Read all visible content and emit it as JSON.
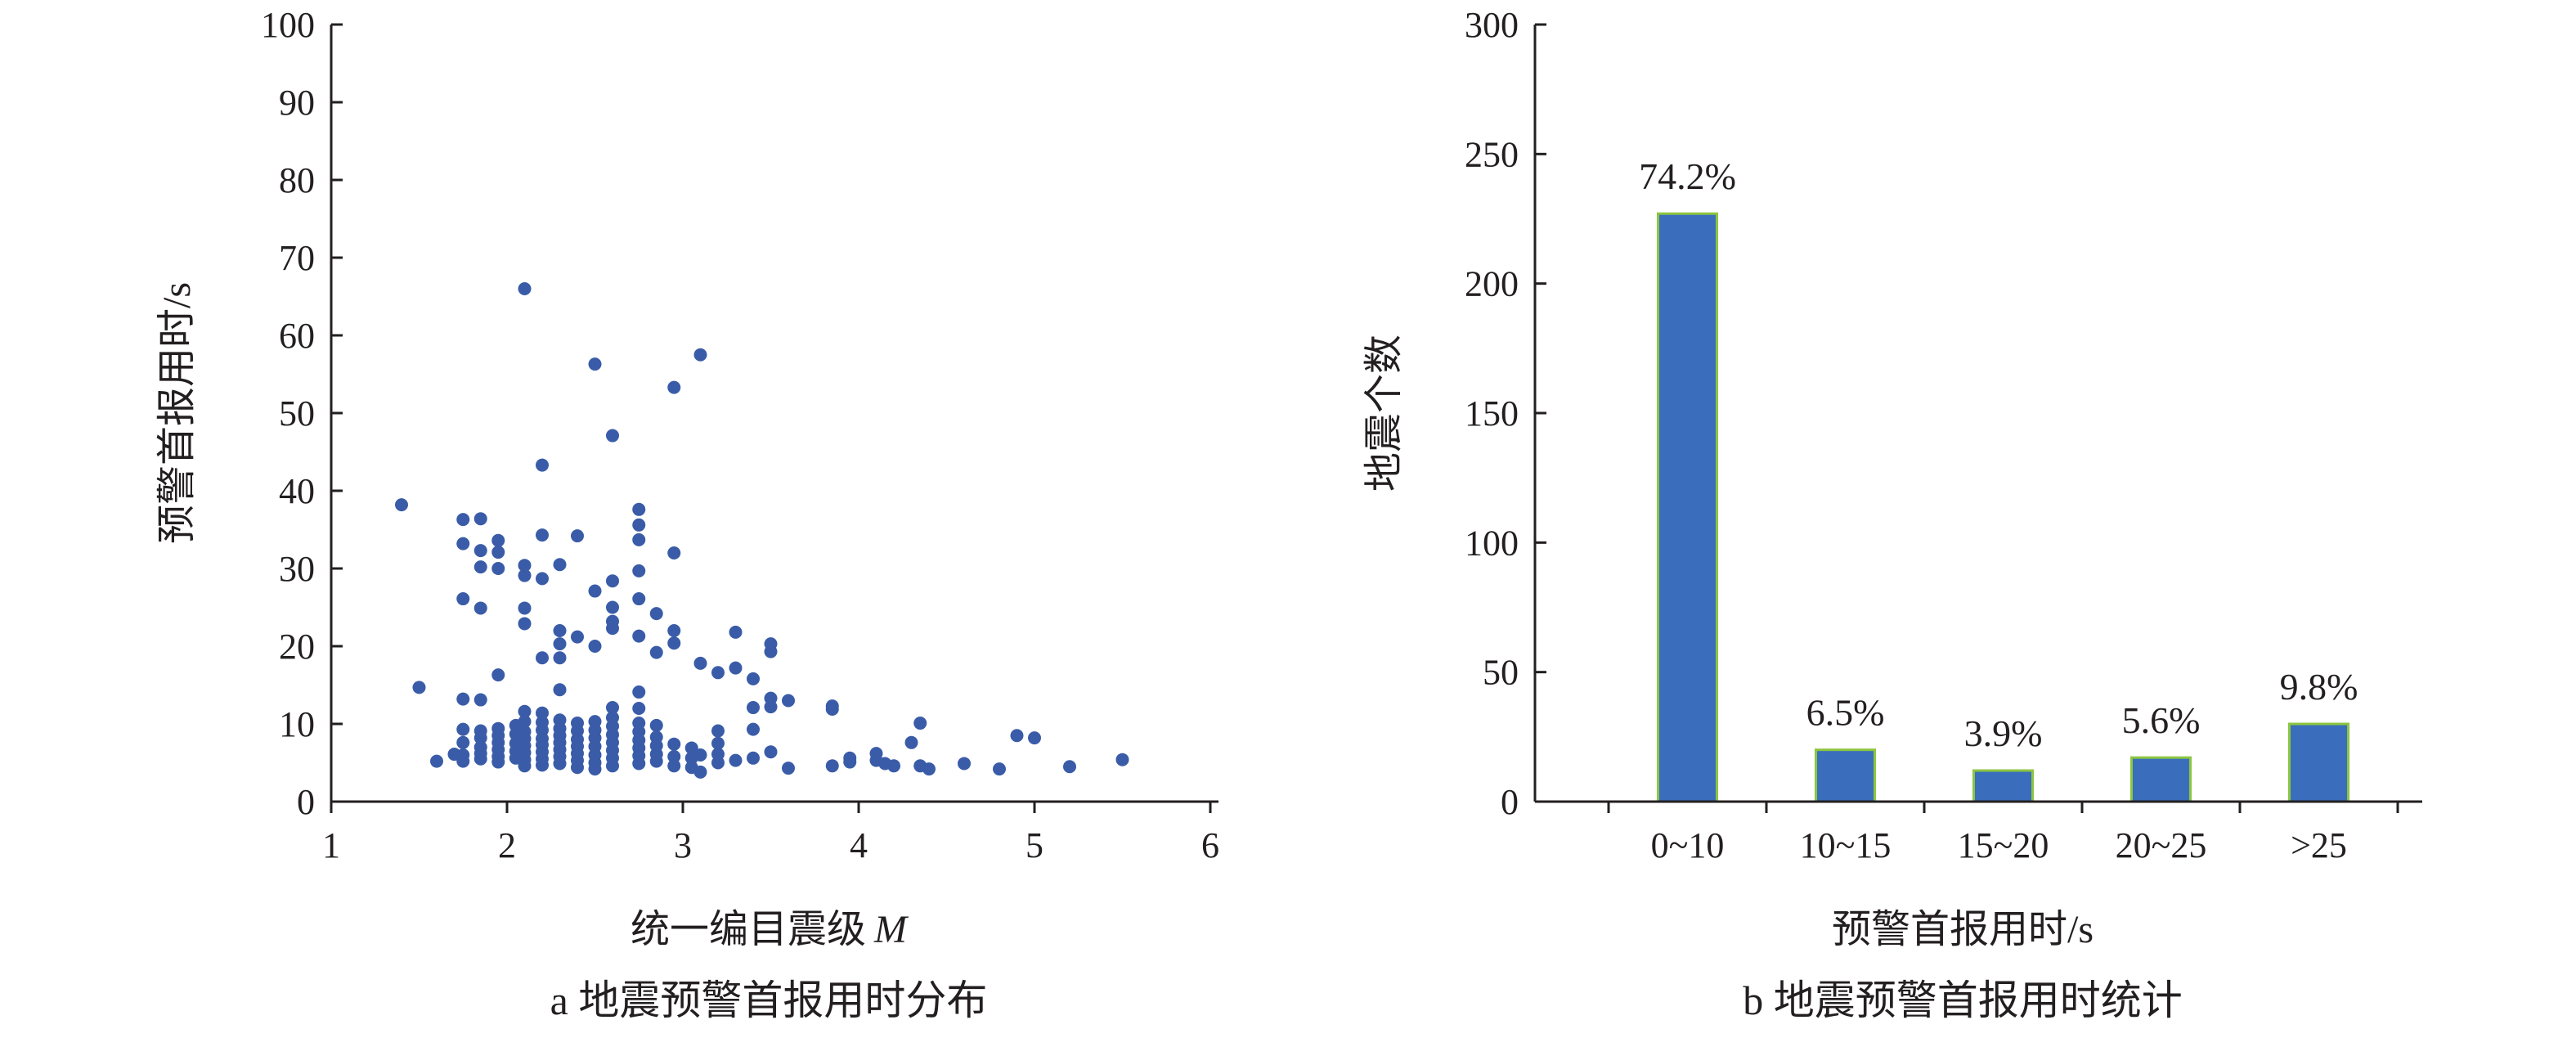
{
  "chart_data": [
    {
      "type": "scatter",
      "caption": "a 地震预警首报用时分布",
      "xlabel": "统一编目震级",
      "xlabel_var": "M",
      "ylabel": "预警首报用时/s",
      "xlim": [
        1,
        6
      ],
      "ylim": [
        0,
        100
      ],
      "xticks": [
        "1",
        "2",
        "3",
        "4",
        "5",
        "6"
      ],
      "yticks": [
        "0",
        "10",
        "20",
        "30",
        "40",
        "50",
        "60",
        "70",
        "80",
        "90",
        "100"
      ],
      "marker_color": "#3a5ca8",
      "points": [
        [
          1.4,
          38.2
        ],
        [
          1.5,
          14.7
        ],
        [
          1.6,
          5.2
        ],
        [
          1.7,
          6.1
        ],
        [
          1.75,
          36.3
        ],
        [
          1.75,
          33.2
        ],
        [
          1.75,
          26.1
        ],
        [
          1.75,
          13.2
        ],
        [
          1.75,
          9.3
        ],
        [
          1.75,
          7.6
        ],
        [
          1.75,
          6.0
        ],
        [
          1.75,
          5.2
        ],
        [
          1.85,
          36.4
        ],
        [
          1.85,
          32.3
        ],
        [
          1.85,
          30.2
        ],
        [
          1.85,
          24.9
        ],
        [
          1.85,
          13.1
        ],
        [
          1.85,
          9.1
        ],
        [
          1.85,
          8.2
        ],
        [
          1.85,
          7.0
        ],
        [
          1.85,
          6.2
        ],
        [
          1.85,
          5.5
        ],
        [
          1.95,
          33.6
        ],
        [
          1.95,
          32.1
        ],
        [
          1.95,
          30.0
        ],
        [
          1.95,
          16.3
        ],
        [
          1.95,
          9.4
        ],
        [
          1.95,
          8.5
        ],
        [
          1.95,
          7.6
        ],
        [
          1.95,
          6.7
        ],
        [
          1.95,
          5.8
        ],
        [
          1.95,
          5.1
        ],
        [
          2.05,
          9.8
        ],
        [
          2.05,
          8.7
        ],
        [
          2.05,
          7.5
        ],
        [
          2.05,
          6.5
        ],
        [
          2.05,
          5.6
        ],
        [
          2.1,
          66.0
        ],
        [
          2.1,
          30.4
        ],
        [
          2.1,
          29.1
        ],
        [
          2.1,
          24.9
        ],
        [
          2.1,
          22.9
        ],
        [
          2.1,
          11.6
        ],
        [
          2.1,
          10.3
        ],
        [
          2.1,
          9.0
        ],
        [
          2.1,
          8.1
        ],
        [
          2.1,
          7.2
        ],
        [
          2.1,
          6.3
        ],
        [
          2.1,
          5.4
        ],
        [
          2.1,
          4.6
        ],
        [
          2.2,
          43.3
        ],
        [
          2.2,
          34.3
        ],
        [
          2.2,
          28.7
        ],
        [
          2.2,
          18.5
        ],
        [
          2.2,
          11.4
        ],
        [
          2.2,
          10.2
        ],
        [
          2.2,
          9.2
        ],
        [
          2.2,
          8.1
        ],
        [
          2.2,
          7.3
        ],
        [
          2.2,
          6.4
        ],
        [
          2.2,
          5.5
        ],
        [
          2.2,
          4.7
        ],
        [
          2.3,
          30.5
        ],
        [
          2.3,
          22.0
        ],
        [
          2.3,
          20.3
        ],
        [
          2.3,
          18.5
        ],
        [
          2.3,
          14.4
        ],
        [
          2.3,
          10.5
        ],
        [
          2.3,
          9.4
        ],
        [
          2.3,
          8.5
        ],
        [
          2.3,
          7.6
        ],
        [
          2.3,
          6.7
        ],
        [
          2.3,
          5.8
        ],
        [
          2.3,
          4.9
        ],
        [
          2.4,
          34.2
        ],
        [
          2.4,
          21.2
        ],
        [
          2.4,
          10.1
        ],
        [
          2.4,
          9.1
        ],
        [
          2.4,
          8.0
        ],
        [
          2.4,
          7.1
        ],
        [
          2.4,
          6.2
        ],
        [
          2.4,
          5.3
        ],
        [
          2.4,
          4.4
        ],
        [
          2.5,
          56.3
        ],
        [
          2.5,
          27.1
        ],
        [
          2.5,
          20.0
        ],
        [
          2.5,
          10.3
        ],
        [
          2.5,
          9.2
        ],
        [
          2.5,
          8.2
        ],
        [
          2.5,
          7.1
        ],
        [
          2.5,
          6.0
        ],
        [
          2.5,
          5.0
        ],
        [
          2.5,
          4.2
        ],
        [
          2.6,
          47.1
        ],
        [
          2.6,
          28.4
        ],
        [
          2.6,
          25.0
        ],
        [
          2.6,
          23.2
        ],
        [
          2.6,
          22.3
        ],
        [
          2.6,
          12.1
        ],
        [
          2.6,
          10.8
        ],
        [
          2.6,
          9.7
        ],
        [
          2.6,
          8.6
        ],
        [
          2.6,
          7.6
        ],
        [
          2.6,
          6.6
        ],
        [
          2.6,
          5.6
        ],
        [
          2.6,
          4.6
        ],
        [
          2.75,
          37.6
        ],
        [
          2.75,
          35.6
        ],
        [
          2.75,
          33.7
        ],
        [
          2.75,
          29.7
        ],
        [
          2.75,
          26.1
        ],
        [
          2.75,
          21.3
        ],
        [
          2.75,
          14.1
        ],
        [
          2.75,
          12.0
        ],
        [
          2.75,
          10.1
        ],
        [
          2.75,
          9.0
        ],
        [
          2.75,
          7.9
        ],
        [
          2.75,
          6.9
        ],
        [
          2.75,
          5.9
        ],
        [
          2.75,
          4.9
        ],
        [
          2.85,
          24.2
        ],
        [
          2.85,
          19.2
        ],
        [
          2.85,
          9.8
        ],
        [
          2.85,
          8.3
        ],
        [
          2.85,
          7.2
        ],
        [
          2.85,
          6.1
        ],
        [
          2.85,
          5.2
        ],
        [
          2.95,
          53.3
        ],
        [
          2.95,
          32.0
        ],
        [
          2.95,
          22.0
        ],
        [
          2.95,
          20.4
        ],
        [
          2.95,
          7.4
        ],
        [
          2.95,
          5.8
        ],
        [
          2.95,
          4.6
        ],
        [
          3.05,
          6.9
        ],
        [
          3.05,
          5.6
        ],
        [
          3.05,
          4.4
        ],
        [
          3.1,
          57.5
        ],
        [
          3.1,
          17.8
        ],
        [
          3.1,
          6.0
        ],
        [
          3.1,
          3.8
        ],
        [
          3.2,
          16.6
        ],
        [
          3.2,
          9.1
        ],
        [
          3.2,
          7.5
        ],
        [
          3.2,
          6.1
        ],
        [
          3.2,
          5.0
        ],
        [
          3.3,
          21.8
        ],
        [
          3.3,
          17.2
        ],
        [
          3.3,
          5.3
        ],
        [
          3.4,
          15.8
        ],
        [
          3.4,
          12.1
        ],
        [
          3.4,
          9.3
        ],
        [
          3.4,
          5.6
        ],
        [
          3.5,
          20.3
        ],
        [
          3.5,
          19.3
        ],
        [
          3.5,
          13.3
        ],
        [
          3.5,
          12.2
        ],
        [
          3.5,
          6.4
        ],
        [
          3.6,
          13.0
        ],
        [
          3.6,
          4.3
        ],
        [
          3.85,
          12.3
        ],
        [
          3.85,
          11.9
        ],
        [
          3.85,
          4.6
        ],
        [
          3.95,
          5.6
        ],
        [
          3.95,
          5.1
        ],
        [
          4.1,
          6.2
        ],
        [
          4.1,
          5.3
        ],
        [
          4.15,
          4.9
        ],
        [
          4.2,
          4.6
        ],
        [
          4.3,
          7.6
        ],
        [
          4.35,
          10.1
        ],
        [
          4.35,
          4.6
        ],
        [
          4.4,
          4.2
        ],
        [
          4.6,
          4.9
        ],
        [
          4.8,
          4.2
        ],
        [
          4.9,
          8.5
        ],
        [
          5.0,
          8.2
        ],
        [
          5.2,
          4.5
        ],
        [
          5.5,
          5.4
        ]
      ]
    },
    {
      "type": "bar",
      "caption": "b 地震预警首报用时统计",
      "xlabel": "预警首报用时/s",
      "ylabel": "地震个数",
      "ylim": [
        0,
        300
      ],
      "yticks": [
        "0",
        "50",
        "100",
        "150",
        "200",
        "250",
        "300"
      ],
      "categories": [
        "0~10",
        "10~15",
        "15~20",
        "20~25",
        ">25"
      ],
      "values": [
        227,
        20,
        12,
        17,
        30
      ],
      "data_labels": [
        "74.2%",
        "6.5%",
        "3.9%",
        "5.6%",
        "9.8%"
      ],
      "bar_color": "#3a6ebd",
      "bar_edge_color": "#8cc63f"
    }
  ]
}
